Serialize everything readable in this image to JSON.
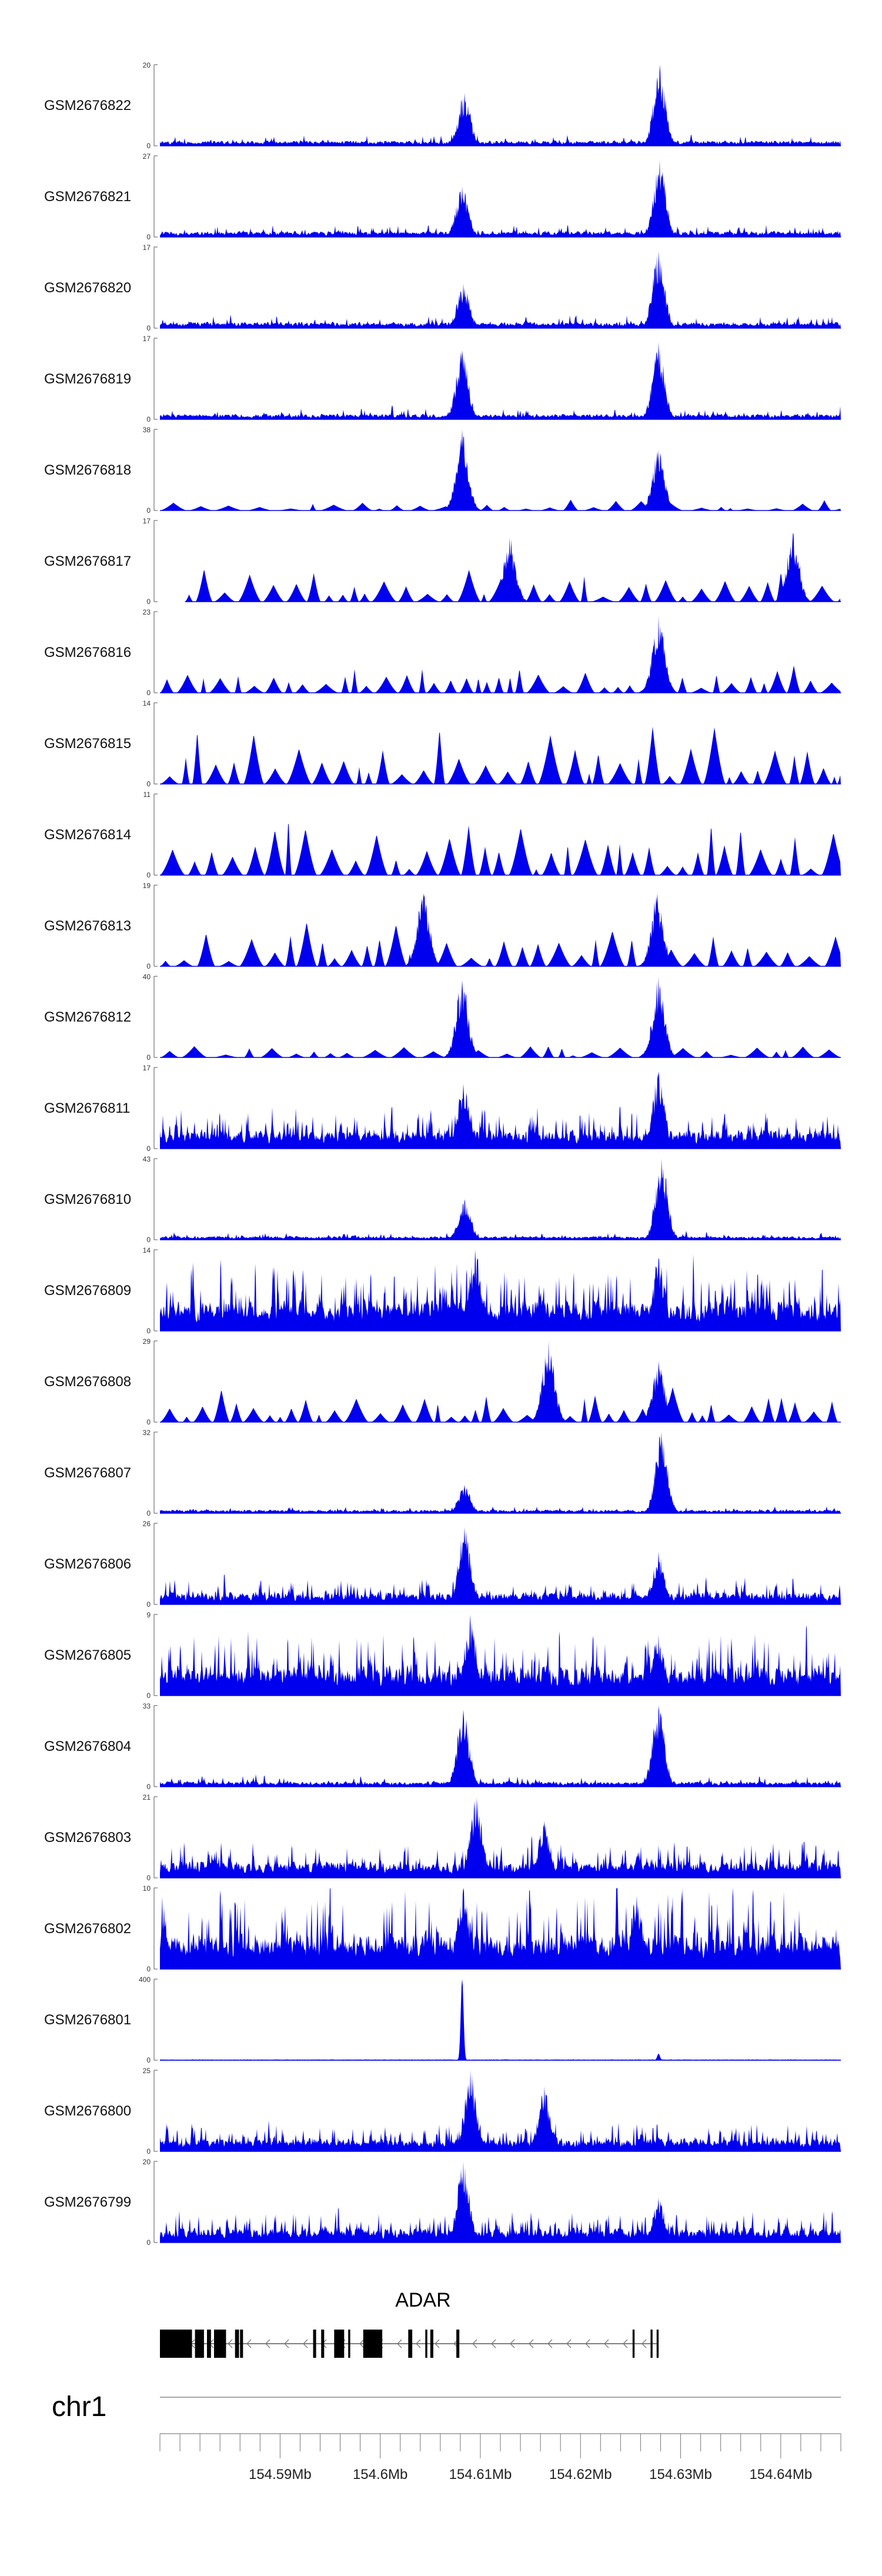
{
  "chart_data": {
    "type": "area",
    "title": "",
    "xlabel": "",
    "ylabel": "",
    "xlim": [
      154578000,
      154646000
    ],
    "series_color": "#0000ee",
    "tracks": [
      {
        "name": "GSM2676822",
        "ymax": 20,
        "profile": "smooth",
        "seed": 1,
        "baseline": 0.12,
        "peaks": [
          {
            "x": 154608400,
            "h": 0.65
          },
          {
            "x": 154627900,
            "h": 1.0
          }
        ]
      },
      {
        "name": "GSM2676821",
        "ymax": 27,
        "profile": "smooth",
        "seed": 2,
        "baseline": 0.13,
        "peaks": [
          {
            "x": 154608200,
            "h": 0.62
          },
          {
            "x": 154627900,
            "h": 0.95
          }
        ]
      },
      {
        "name": "GSM2676820",
        "ymax": 17,
        "profile": "smooth",
        "seed": 3,
        "baseline": 0.14,
        "peaks": [
          {
            "x": 154608300,
            "h": 0.55
          },
          {
            "x": 154627800,
            "h": 0.95
          }
        ]
      },
      {
        "name": "GSM2676819",
        "ymax": 17,
        "profile": "smooth",
        "seed": 4,
        "baseline": 0.12,
        "peaks": [
          {
            "x": 154608200,
            "h": 0.85
          },
          {
            "x": 154627800,
            "h": 0.95
          }
        ]
      },
      {
        "name": "GSM2676818",
        "ymax": 38,
        "profile": "sparse",
        "seed": 5,
        "baseline": 0.08,
        "peaks": [
          {
            "x": 154608200,
            "h": 1.0
          },
          {
            "x": 154627800,
            "h": 0.75
          }
        ]
      },
      {
        "name": "GSM2676817",
        "ymax": 17,
        "profile": "spiky",
        "seed": 6,
        "baseline": 0.28,
        "start": 154580500,
        "peaks": [
          {
            "x": 154612900,
            "h": 0.8
          },
          {
            "x": 154641200,
            "h": 0.85
          }
        ]
      },
      {
        "name": "GSM2676816",
        "ymax": 23,
        "profile": "spiky",
        "seed": 7,
        "baseline": 0.2,
        "peaks": [
          {
            "x": 154627800,
            "h": 0.95
          }
        ]
      },
      {
        "name": "GSM2676815",
        "ymax": 14,
        "profile": "spiky",
        "seed": 8,
        "baseline": 0.55,
        "peaks": []
      },
      {
        "name": "GSM2676814",
        "ymax": 11,
        "profile": "spiky",
        "seed": 9,
        "baseline": 0.5,
        "peaks": []
      },
      {
        "name": "GSM2676813",
        "ymax": 19,
        "profile": "spiky",
        "seed": 10,
        "baseline": 0.35,
        "peaks": [
          {
            "x": 154604300,
            "h": 0.9
          },
          {
            "x": 154627700,
            "h": 0.9
          }
        ]
      },
      {
        "name": "GSM2676812",
        "ymax": 40,
        "profile": "sparse",
        "seed": 11,
        "baseline": 0.06,
        "peaks": [
          {
            "x": 154608200,
            "h": 0.95
          },
          {
            "x": 154627800,
            "h": 1.0
          }
        ]
      },
      {
        "name": "GSM2676811",
        "ymax": 17,
        "profile": "dense",
        "seed": 12,
        "baseline": 0.28,
        "peaks": [
          {
            "x": 154608300,
            "h": 0.8
          },
          {
            "x": 154627800,
            "h": 0.95
          }
        ]
      },
      {
        "name": "GSM2676810",
        "ymax": 43,
        "profile": "smooth",
        "seed": 13,
        "baseline": 0.08,
        "peaks": [
          {
            "x": 154608400,
            "h": 0.5
          },
          {
            "x": 154628100,
            "h": 1.0
          }
        ]
      },
      {
        "name": "GSM2676809",
        "ymax": 14,
        "profile": "dense",
        "seed": 14,
        "baseline": 0.45,
        "peaks": [
          {
            "x": 154609500,
            "h": 1.0
          },
          {
            "x": 154627800,
            "h": 0.9
          }
        ]
      },
      {
        "name": "GSM2676808",
        "ymax": 29,
        "profile": "spiky",
        "seed": 15,
        "baseline": 0.25,
        "peaks": [
          {
            "x": 154616800,
            "h": 1.0
          },
          {
            "x": 154627800,
            "h": 0.75
          }
        ]
      },
      {
        "name": "GSM2676807",
        "ymax": 32,
        "profile": "smooth",
        "seed": 16,
        "baseline": 0.08,
        "peaks": [
          {
            "x": 154608400,
            "h": 0.35
          },
          {
            "x": 154628100,
            "h": 1.0
          }
        ]
      },
      {
        "name": "GSM2676806",
        "ymax": 26,
        "profile": "dense",
        "seed": 17,
        "baseline": 0.18,
        "peaks": [
          {
            "x": 154608400,
            "h": 0.95
          },
          {
            "x": 154627800,
            "h": 0.65
          }
        ]
      },
      {
        "name": "GSM2676805",
        "ymax": 9,
        "profile": "dense",
        "seed": 18,
        "baseline": 0.45,
        "peaks": [
          {
            "x": 154609000,
            "h": 1.0
          },
          {
            "x": 154627800,
            "h": 0.75
          }
        ]
      },
      {
        "name": "GSM2676804",
        "ymax": 33,
        "profile": "smooth",
        "seed": 19,
        "baseline": 0.12,
        "peaks": [
          {
            "x": 154608300,
            "h": 0.95
          },
          {
            "x": 154627800,
            "h": 1.0
          }
        ]
      },
      {
        "name": "GSM2676803",
        "ymax": 21,
        "profile": "dense",
        "seed": 20,
        "baseline": 0.25,
        "peaks": [
          {
            "x": 154609600,
            "h": 1.0
          },
          {
            "x": 154616400,
            "h": 0.7
          }
        ]
      },
      {
        "name": "GSM2676802",
        "ymax": 10,
        "profile": "dense",
        "seed": 21,
        "baseline": 0.55,
        "peaks": [
          {
            "x": 154608300,
            "h": 1.0
          },
          {
            "x": 154625600,
            "h": 0.9
          }
        ]
      },
      {
        "name": "GSM2676801",
        "ymax": 400,
        "profile": "single",
        "seed": 22,
        "baseline": 0.0,
        "peaks": [
          {
            "x": 154608200,
            "h": 1.0
          },
          {
            "x": 154627800,
            "h": 0.08
          }
        ]
      },
      {
        "name": "GSM2676800",
        "ymax": 25,
        "profile": "dense",
        "seed": 23,
        "baseline": 0.2,
        "peaks": [
          {
            "x": 154609000,
            "h": 1.0
          },
          {
            "x": 154616400,
            "h": 0.8
          }
        ]
      },
      {
        "name": "GSM2676799",
        "ymax": 20,
        "profile": "dense",
        "seed": 24,
        "baseline": 0.22,
        "peaks": [
          {
            "x": 154608300,
            "h": 1.0
          },
          {
            "x": 154627800,
            "h": 0.55
          }
        ]
      }
    ],
    "gene": {
      "name": "ADAR",
      "start": 154578000,
      "end": 154627800,
      "strand": "-",
      "exons": [
        [
          154578000,
          154581200
        ],
        [
          154581500,
          154582400
        ],
        [
          154582700,
          154583100
        ],
        [
          154583400,
          154584600
        ],
        [
          154585500,
          154585900
        ],
        [
          154586000,
          154586300
        ],
        [
          154593300,
          154593600
        ],
        [
          154594100,
          154594400
        ],
        [
          154595400,
          154596400
        ],
        [
          154596800,
          154597000
        ],
        [
          154598300,
          154600200
        ],
        [
          154602800,
          154603200
        ],
        [
          154604500,
          154604700
        ],
        [
          154605000,
          154605300
        ],
        [
          154607600,
          154607900
        ],
        [
          154625200,
          154625400
        ],
        [
          154627000,
          154627200
        ],
        [
          154627600,
          154627800
        ]
      ]
    },
    "chromosome": "chr1",
    "axis": {
      "major_ticks": [
        154590000,
        154600000,
        154610000,
        154620000,
        154630000,
        154640000
      ],
      "major_labels": [
        "154.59Mb",
        "154.6Mb",
        "154.61Mb",
        "154.62Mb",
        "154.63Mb",
        "154.64Mb"
      ],
      "minor_step": 2000
    }
  }
}
